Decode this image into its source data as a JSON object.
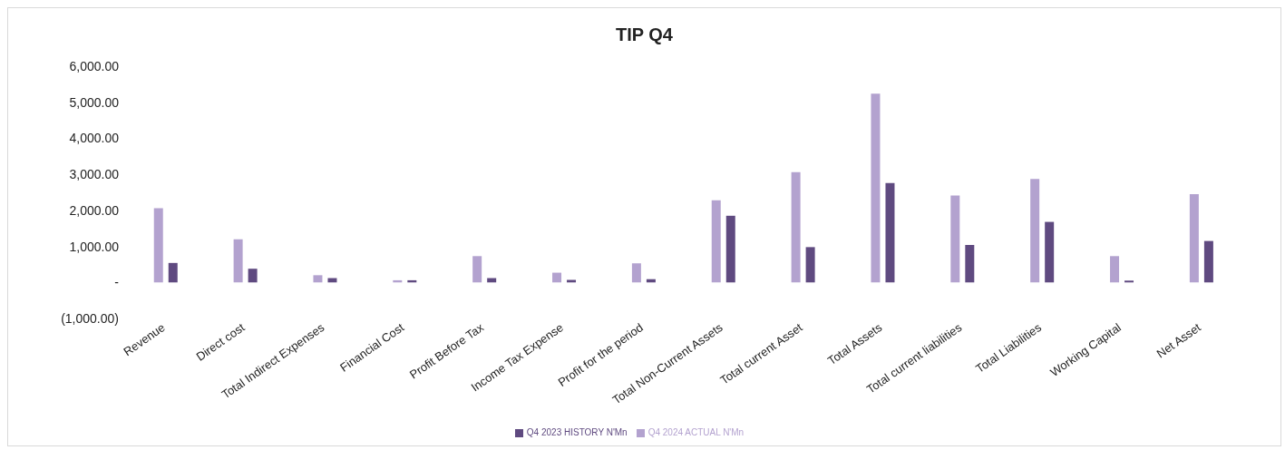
{
  "chart_data": {
    "type": "bar",
    "title": "TIP Q4",
    "categories": [
      "Revenue",
      "Direct cost",
      "Total Indirect Expenses",
      "Financial Cost",
      "Profit Before Tax",
      "Income Tax Expense",
      "Profit for the period",
      "Total Non-Current Assets",
      "Total current Asset",
      "Total Assets",
      "Total current liabilities",
      "Total Liabilities",
      "Working Capital",
      "Net Asset"
    ],
    "series": [
      {
        "name": "Q4 2024 ACTUAL N'Mn",
        "color": "#b3a2cf",
        "values": [
          2060,
          1200,
          200,
          60,
          730,
          270,
          530,
          2280,
          3060,
          5240,
          2410,
          2870,
          730,
          2450
        ]
      },
      {
        "name": "Q4 2023 HISTORY N'Mn",
        "color": "#5f4a80",
        "values": [
          540,
          380,
          120,
          60,
          120,
          70,
          90,
          1850,
          980,
          2760,
          1040,
          1680,
          50,
          1150
        ]
      }
    ],
    "ylim": [
      -1000,
      6000
    ],
    "yticks": [
      {
        "value": -1000,
        "label": "(1,000.00)"
      },
      {
        "value": 0,
        "label": "-"
      },
      {
        "value": 1000,
        "label": "1,000.00"
      },
      {
        "value": 2000,
        "label": "2,000.00"
      },
      {
        "value": 3000,
        "label": "3,000.00"
      },
      {
        "value": 4000,
        "label": "4,000.00"
      },
      {
        "value": 5000,
        "label": "5,000.00"
      },
      {
        "value": 6000,
        "label": "6,000.00"
      }
    ],
    "grid": false,
    "legend": "bottom"
  }
}
